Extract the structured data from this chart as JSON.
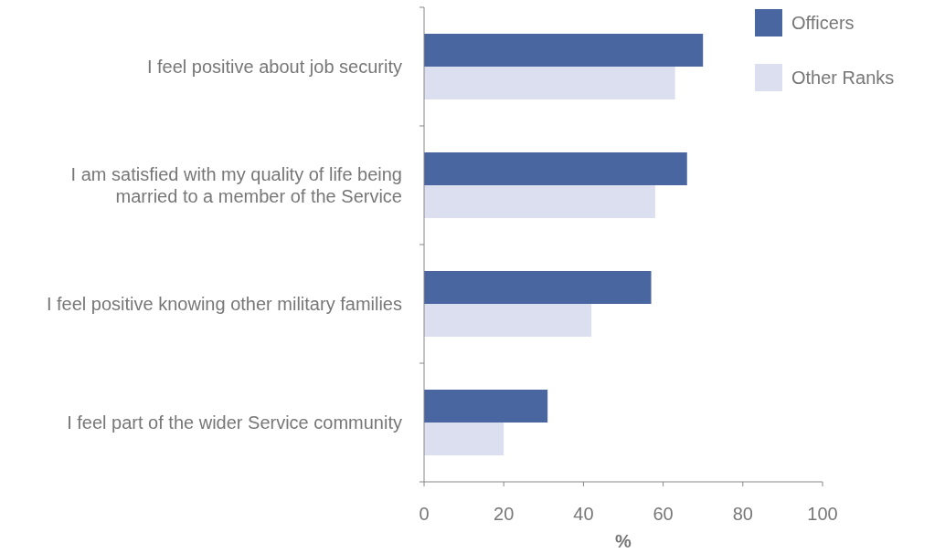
{
  "chart_data": {
    "type": "bar",
    "orientation": "horizontal",
    "xlabel": "%",
    "categories": [
      "I feel positive about job security",
      "I am satisfied with my quality of life being married to a member of the Service",
      "I feel positive knowing other military families",
      "I feel part of the wider Service community"
    ],
    "series": [
      {
        "name": "Officers",
        "color": "#4a66a0",
        "values": [
          70,
          66,
          57,
          31
        ]
      },
      {
        "name": "Other Ranks",
        "color": "#dcdff0",
        "values": [
          63,
          58,
          42,
          20
        ]
      }
    ],
    "xlim": [
      0,
      100
    ],
    "xticks": [
      0,
      20,
      40,
      60,
      80,
      100
    ],
    "legend": "top right",
    "grid": false
  }
}
